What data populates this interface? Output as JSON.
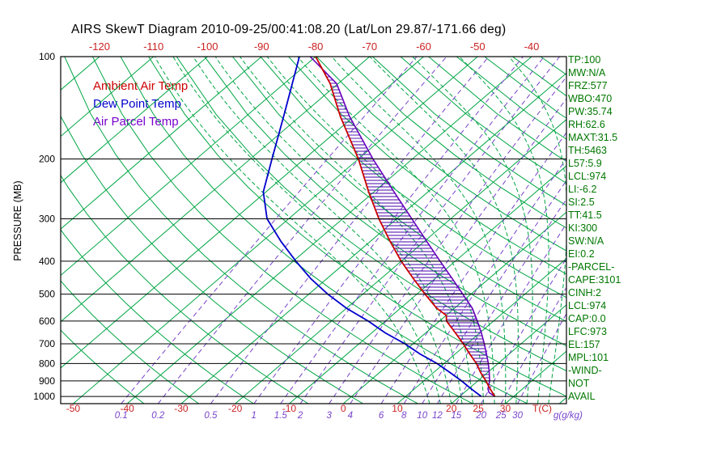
{
  "title": "AIRS SkewT Diagram 2010-09-25/00:41:08.20 (Lat/Lon 29.87/-171.66 deg)",
  "legend": {
    "ambient": "Ambient Air Temp",
    "dew": "Dew Point Temp",
    "parcel": "Air Parcel Temp"
  },
  "axes": {
    "pressure_label": "PRESSURE (MB)",
    "pressure_ticks": [
      100,
      200,
      300,
      400,
      500,
      600,
      700,
      800,
      900,
      1000
    ],
    "top_temp_ticks": [
      -120,
      -110,
      -100,
      -90,
      -80,
      -70,
      -60,
      -50,
      -40
    ],
    "bottom_temp_ticks": [
      -50,
      -40,
      -30,
      -20,
      -10,
      0,
      10,
      20,
      25,
      30
    ],
    "temp_unit_label": "T(C)",
    "mixing_ratio_ticks": [
      0.1,
      0.2,
      0.5,
      1,
      1.5,
      2,
      3,
      4,
      6,
      8,
      10,
      12,
      15,
      20,
      25,
      30
    ],
    "mixing_unit_label": "g(g/kg)"
  },
  "stats": {
    "lines": [
      "TP:100",
      "MW:N/A",
      "FRZ:577",
      "WBO:470",
      "PW:35.74",
      "RH:62.6",
      "MAXT:31.5",
      "TH:5463",
      "L57:5.9",
      "LCL:974",
      "LI:-6.2",
      "SI:2.5",
      "TT:41.5",
      "KI:300",
      "SW:N/A",
      "EI:0.2",
      "-PARCEL-",
      "CAPE:3101",
      "CINH:2",
      "LCL:974",
      "CAP:0.0",
      "LFC:973",
      "EL:157",
      "MPL:101",
      "-WIND-",
      "NOT",
      "AVAIL"
    ]
  },
  "colors": {
    "grid_green": "#00a644",
    "mixing_purple": "#7744cc",
    "ambient_red": "#cc0000",
    "dew_blue": "#0000cc",
    "parcel_purple": "#6600bb",
    "hatch": "#4400aa",
    "axis_red": "#cc2222",
    "stats_green": "#007700",
    "black": "#000000"
  },
  "chart_data": {
    "type": "line",
    "title": "AIRS SkewT Diagram 2010-09-25/00:41:08.20 (Lat/Lon 29.87/-171.66 deg)",
    "xlabel": "Temperature (C), skewed",
    "ylabel": "Pressure (MB), log scale",
    "pressure_range": [
      100,
      1050
    ],
    "temp_axis_top_c": [
      -120,
      -40
    ],
    "series": [
      {
        "name": "Ambient Air Temp",
        "color": "#cc0000",
        "points": [
          [
            1000,
            26.5
          ],
          [
            950,
            24.0
          ],
          [
            900,
            21.5
          ],
          [
            850,
            18.7
          ],
          [
            800,
            16.0
          ],
          [
            750,
            12.7
          ],
          [
            700,
            9.3
          ],
          [
            650,
            5.5
          ],
          [
            600,
            1.3
          ],
          [
            577,
            0.0
          ],
          [
            550,
            -3.3
          ],
          [
            500,
            -8.5
          ],
          [
            450,
            -14.0
          ],
          [
            400,
            -20.0
          ],
          [
            350,
            -26.3
          ],
          [
            300,
            -33.3
          ],
          [
            250,
            -41.0
          ],
          [
            200,
            -50.0
          ],
          [
            150,
            -62.5
          ],
          [
            120,
            -71.5
          ],
          [
            100,
            -80.0
          ]
        ]
      },
      {
        "name": "Dew Point Temp",
        "color": "#0000cc",
        "points": [
          [
            1000,
            24.0
          ],
          [
            950,
            20.5
          ],
          [
            900,
            17.0
          ],
          [
            850,
            13.0
          ],
          [
            800,
            8.7
          ],
          [
            750,
            3.5
          ],
          [
            700,
            -1.5
          ],
          [
            650,
            -7.5
          ],
          [
            600,
            -13.2
          ],
          [
            550,
            -20.0
          ],
          [
            500,
            -26.5
          ],
          [
            450,
            -33.0
          ],
          [
            400,
            -39.5
          ],
          [
            350,
            -46.5
          ],
          [
            300,
            -54.0
          ],
          [
            250,
            -60.5
          ],
          [
            200,
            -66.0
          ],
          [
            150,
            -73.0
          ],
          [
            100,
            -83.0
          ]
        ]
      },
      {
        "name": "Air Parcel Temp",
        "color": "#6600bb",
        "points": [
          [
            1000,
            26.5
          ],
          [
            974,
            24.6
          ],
          [
            950,
            23.6
          ],
          [
            900,
            22.2
          ],
          [
            850,
            20.3
          ],
          [
            800,
            18.2
          ],
          [
            750,
            15.8
          ],
          [
            700,
            13.2
          ],
          [
            650,
            10.3
          ],
          [
            600,
            7.0
          ],
          [
            550,
            3.3
          ],
          [
            500,
            -1.5
          ],
          [
            450,
            -6.8
          ],
          [
            400,
            -12.8
          ],
          [
            350,
            -19.5
          ],
          [
            300,
            -27.2
          ],
          [
            250,
            -36.3
          ],
          [
            200,
            -47.3
          ],
          [
            150,
            -60.8
          ],
          [
            120,
            -70.3
          ],
          [
            100,
            -81.0
          ]
        ]
      }
    ],
    "isotherms_c": {
      "min": -120,
      "max": 40,
      "step": 10
    },
    "dry_adiabats_k": {
      "min": 233,
      "max": 453,
      "step": 10
    },
    "moist_adiabats_start_c": {
      "min": 16,
      "max": 38,
      "step": 2
    },
    "mixing_ratio_lines_gkg": [
      0.1,
      0.2,
      0.5,
      1,
      1.5,
      2,
      3,
      4,
      6,
      8,
      10,
      12,
      15,
      20,
      25,
      30
    ],
    "grid": true,
    "legend_position": "top-left inside plot"
  }
}
